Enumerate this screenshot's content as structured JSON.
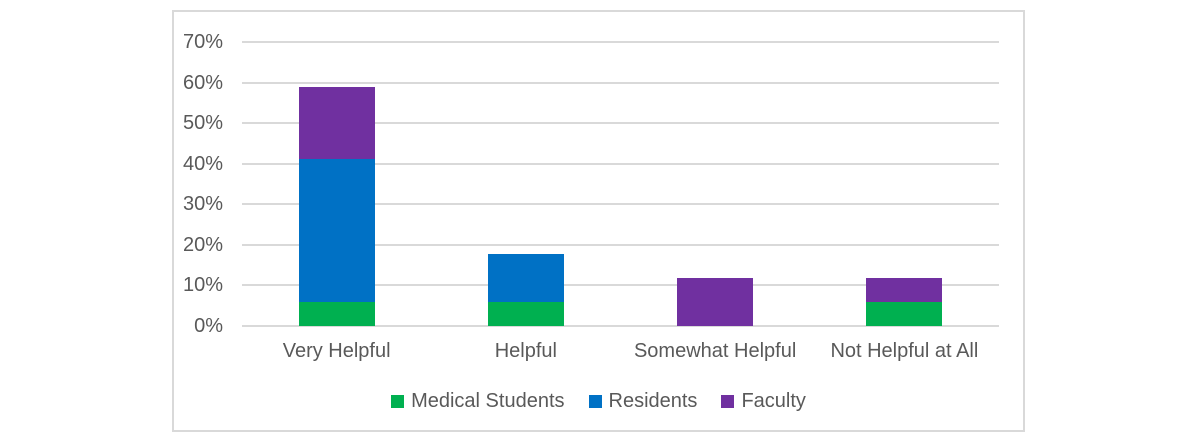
{
  "colors": {
    "background": "#FFFFFF",
    "frame_border": "#D9D9D9",
    "gridline": "#D9D9D9",
    "text": "#595959",
    "series_medical_students": "#00B050",
    "series_residents": "#0071C5",
    "series_faculty": "#7030A0"
  },
  "chart_data": {
    "type": "bar",
    "stacked": true,
    "title": "",
    "xlabel": "",
    "ylabel": "",
    "categories": [
      "Very Helpful",
      "Helpful",
      "Somewhat Helpful",
      "Not Helpful at All"
    ],
    "series": [
      {
        "name": "Medical Students",
        "color": "#00B050",
        "values": [
          5.88,
          5.88,
          0,
          5.88
        ]
      },
      {
        "name": "Residents",
        "color": "#0071C5",
        "values": [
          35.29,
          11.76,
          0,
          0
        ]
      },
      {
        "name": "Faculty",
        "color": "#7030A0",
        "values": [
          17.65,
          0,
          11.76,
          5.88
        ]
      }
    ],
    "totals_by_category": [
      58.82,
      17.64,
      11.76,
      11.76
    ],
    "y_ticks": [
      "0%",
      "10%",
      "20%",
      "30%",
      "40%",
      "50%",
      "60%",
      "70%"
    ],
    "ylim": [
      0,
      70
    ],
    "grid": true,
    "legend_position": "bottom"
  }
}
